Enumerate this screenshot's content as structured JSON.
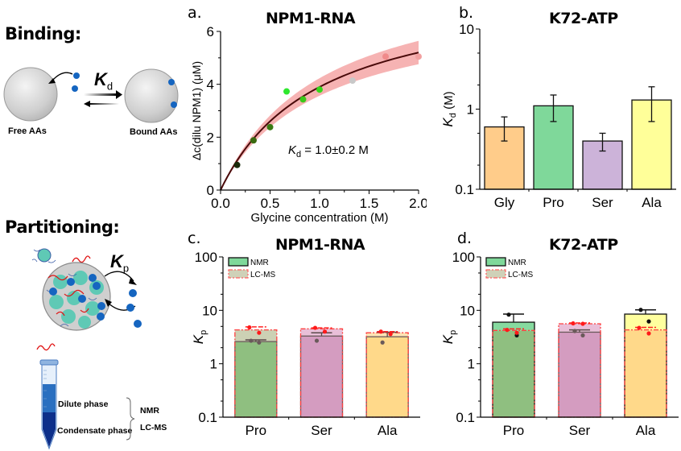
{
  "schematic": {
    "binding": {
      "title": "Binding:",
      "constant_symbol": "K",
      "constant_subscript": "d",
      "left_label": "Free AAs",
      "right_label": "Bound AAs"
    },
    "partitioning": {
      "title": "Partitioning:",
      "constant_symbol": "K",
      "constant_subscript": "p",
      "dilute_label": "Dilute phase",
      "condensate_label": "Condensate phase",
      "method_1": "NMR",
      "method_2": "LC-MS"
    }
  },
  "colors": {
    "blue_dot": "#1565c0",
    "fit_band": "#f4a6a6",
    "fit_line": "#4a0a0a",
    "gly": "#ffcc8a",
    "pro": "#7fd89a",
    "ser": "#ccb3d9",
    "ala": "#ffff99",
    "pro_c": "#8fbf80",
    "ser_c": "#d49cc0",
    "ala_c": "#ffd98a",
    "lcms_dot": "#ff1a1a"
  },
  "chart_data": [
    {
      "id": "a",
      "panel_letter": "a.",
      "type": "scatter",
      "title": "NPM1-RNA",
      "xlabel": "Glycine concentration (M)",
      "ylabel": "Δc(dilu NPM1) (μM)",
      "xlim": [
        0,
        2.0
      ],
      "ylim": [
        0,
        6
      ],
      "xticks": [
        "0.0",
        "0.5",
        "1.0",
        "1.5",
        "2.0"
      ],
      "yticks": [
        "0",
        "2",
        "4",
        "6"
      ],
      "points": [
        {
          "x": 0.167,
          "y": 0.95,
          "color": "#1a2a0a"
        },
        {
          "x": 0.333,
          "y": 1.88,
          "color": "#3a6a10"
        },
        {
          "x": 0.5,
          "y": 2.38,
          "color": "#3a7a14"
        },
        {
          "x": 0.667,
          "y": 3.73,
          "color": "#2ee82e"
        },
        {
          "x": 0.833,
          "y": 3.43,
          "color": "#3ac81a"
        },
        {
          "x": 1.0,
          "y": 3.8,
          "color": "#34d81a"
        },
        {
          "x": 1.333,
          "y": 4.14,
          "color": "#c8c8c8"
        },
        {
          "x": 1.667,
          "y": 5.05,
          "color": "#f08a8a"
        },
        {
          "x": 2.0,
          "y": 5.05,
          "color": "#f2a0a0"
        }
      ],
      "fit": {
        "model": "binding",
        "Bmax": 7.8,
        "Kd": 1.0
      },
      "annotation": {
        "symbol": "K",
        "subscript": "d",
        "text": " = 1.0±0.2 M"
      }
    },
    {
      "id": "b",
      "panel_letter": "b.",
      "type": "bar",
      "title": "K72-ATP",
      "yscale": "log",
      "ylim": [
        0.1,
        10
      ],
      "ylabel_symbol": "K",
      "ylabel_subscript": "d",
      "ylabel_unit": " (M)",
      "yticks": [
        "0.1",
        "1",
        "10"
      ],
      "categories": [
        "Gly",
        "Pro",
        "Ser",
        "Ala"
      ],
      "values": [
        0.6,
        1.1,
        0.4,
        1.3
      ],
      "err_low": [
        0.4,
        0.7,
        0.3,
        0.7
      ],
      "err_high": [
        0.8,
        1.5,
        0.5,
        1.9
      ]
    },
    {
      "id": "c",
      "panel_letter": "c.",
      "type": "bar",
      "title": "NPM1-RNA",
      "yscale": "log",
      "ylim": [
        0.1,
        100
      ],
      "ylabel_symbol": "K",
      "ylabel_subscript": "p",
      "yticks": [
        "0.1",
        "1",
        "10",
        "100"
      ],
      "legend": [
        "NMR",
        "LC-MS"
      ],
      "legend_position": "top-left",
      "categories": [
        "Pro",
        "Ser",
        "Ala"
      ],
      "series": [
        {
          "name": "NMR",
          "values": [
            2.6,
            3.3,
            3.2
          ],
          "err_high": [
            2.8,
            3.8,
            3.9
          ],
          "points": [
            [
              2.7,
              2.5
            ],
            [
              2.7
            ],
            [
              2.5
            ]
          ]
        },
        {
          "name": "LC-MS",
          "values": [
            4.3,
            4.5,
            3.8
          ],
          "err_high": [
            4.9,
            4.7,
            4.0
          ],
          "points": [
            [
              4.8,
              3.8
            ],
            [
              4.7,
              4.0
            ],
            [
              4.0,
              3.6
            ]
          ]
        }
      ]
    },
    {
      "id": "d",
      "panel_letter": "d.",
      "type": "bar",
      "title": "K72-ATP",
      "yscale": "log",
      "ylim": [
        0.1,
        100
      ],
      "ylabel_symbol": "K",
      "ylabel_subscript": "p",
      "yticks": [
        "0.1",
        "1",
        "10",
        "100"
      ],
      "legend": [
        "NMR",
        "LC-MS"
      ],
      "legend_position": "top-left",
      "categories": [
        "Pro",
        "Ser",
        "Ala"
      ],
      "series": [
        {
          "name": "NMR",
          "values": [
            6.0,
            3.9,
            8.5
          ],
          "err_high": [
            8.5,
            4.3,
            10.2
          ],
          "points": [
            [
              8.3,
              3.4
            ],
            [
              4.1,
              3.4
            ],
            [
              10.2,
              6.2
            ]
          ]
        },
        {
          "name": "LC-MS",
          "values": [
            4.2,
            5.6,
            4.3
          ],
          "err_high": [
            4.5,
            5.8,
            4.8
          ],
          "points": [
            [
              4.3,
              3.8
            ],
            [
              5.7,
              5.6
            ],
            [
              4.7,
              3.7
            ]
          ]
        }
      ]
    }
  ]
}
